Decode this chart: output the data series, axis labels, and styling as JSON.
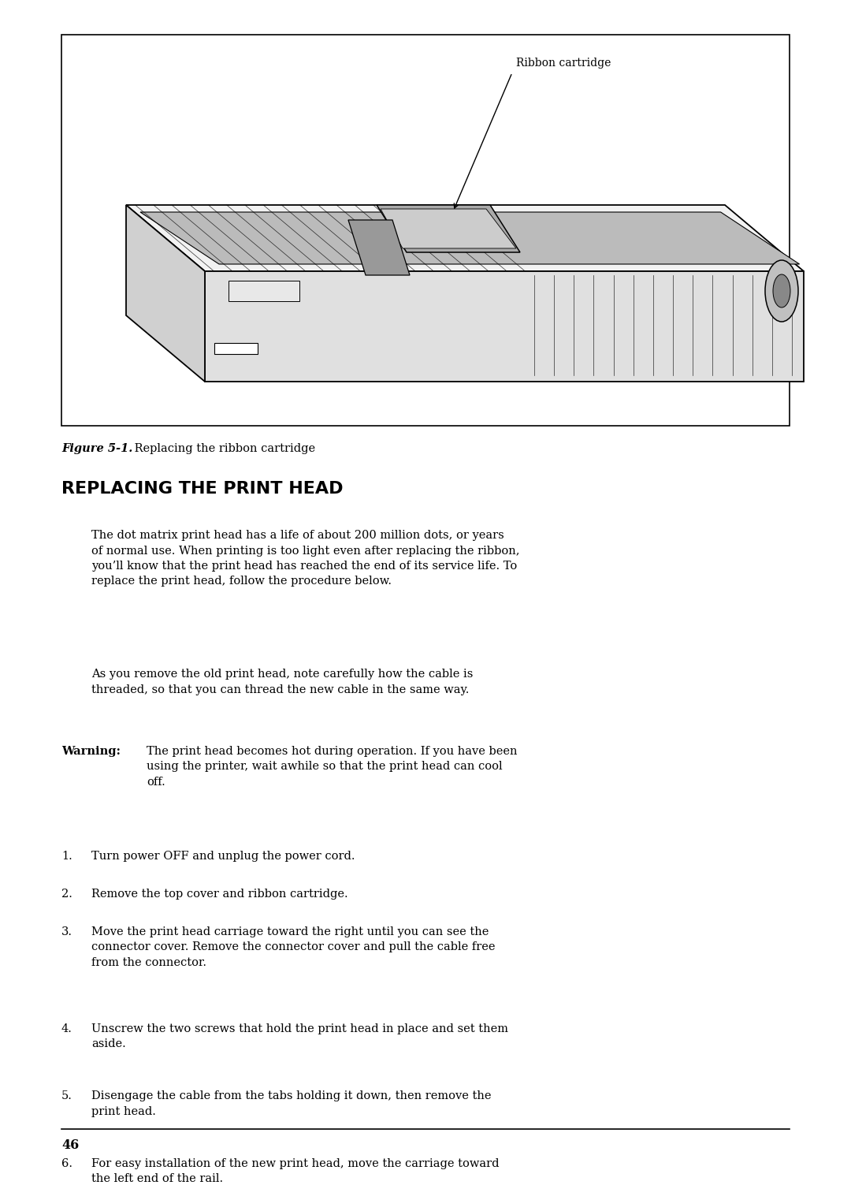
{
  "bg_color": "#ffffff",
  "figure_caption_bold": "Figure 5-1.",
  "figure_caption_rest": " Replacing the ribbon cartridge",
  "section_heading": "REPLACING THE PRINT HEAD",
  "paragraph1_lines": [
    "The dot matrix print head has a life of about 200 million dots, or years",
    "of normal use. When printing is too light even after replacing the ribbon,",
    "you’ll know that the print head has reached the end of its service life. To",
    "replace the print head, follow the procedure below."
  ],
  "paragraph2_lines": [
    "As you remove the old print head, note carefully how the cable is",
    "threaded, so that you can thread the new cable in the same way."
  ],
  "warning_label": "Warning:",
  "warning_lines": [
    "The print head becomes hot during operation. If you have been",
    "using the printer, wait awhile so that the print head can cool",
    "off."
  ],
  "steps": [
    {
      "num": "1.",
      "lines": [
        "Turn power OFF and unplug the power cord."
      ]
    },
    {
      "num": "2.",
      "lines": [
        "Remove the top cover and ribbon cartridge."
      ]
    },
    {
      "num": "3.",
      "lines": [
        "Move the print head carriage toward the right until you can see the",
        "connector cover. Remove the connector cover and pull the cable free",
        "from the connector."
      ]
    },
    {
      "num": "4.",
      "lines": [
        "Unscrew the two screws that hold the print head in place and set them",
        "aside."
      ]
    },
    {
      "num": "5.",
      "lines": [
        "Disengage the cable from the tabs holding it down, then remove the",
        "print head."
      ]
    },
    {
      "num": "6.",
      "lines": [
        "For easy installation of the new print head, move the carriage toward",
        "the left end of the rail."
      ]
    }
  ],
  "page_number": "46",
  "ribbon_label": "Ribbon cartridge",
  "text_color": "#000000",
  "border_color": "#000000"
}
